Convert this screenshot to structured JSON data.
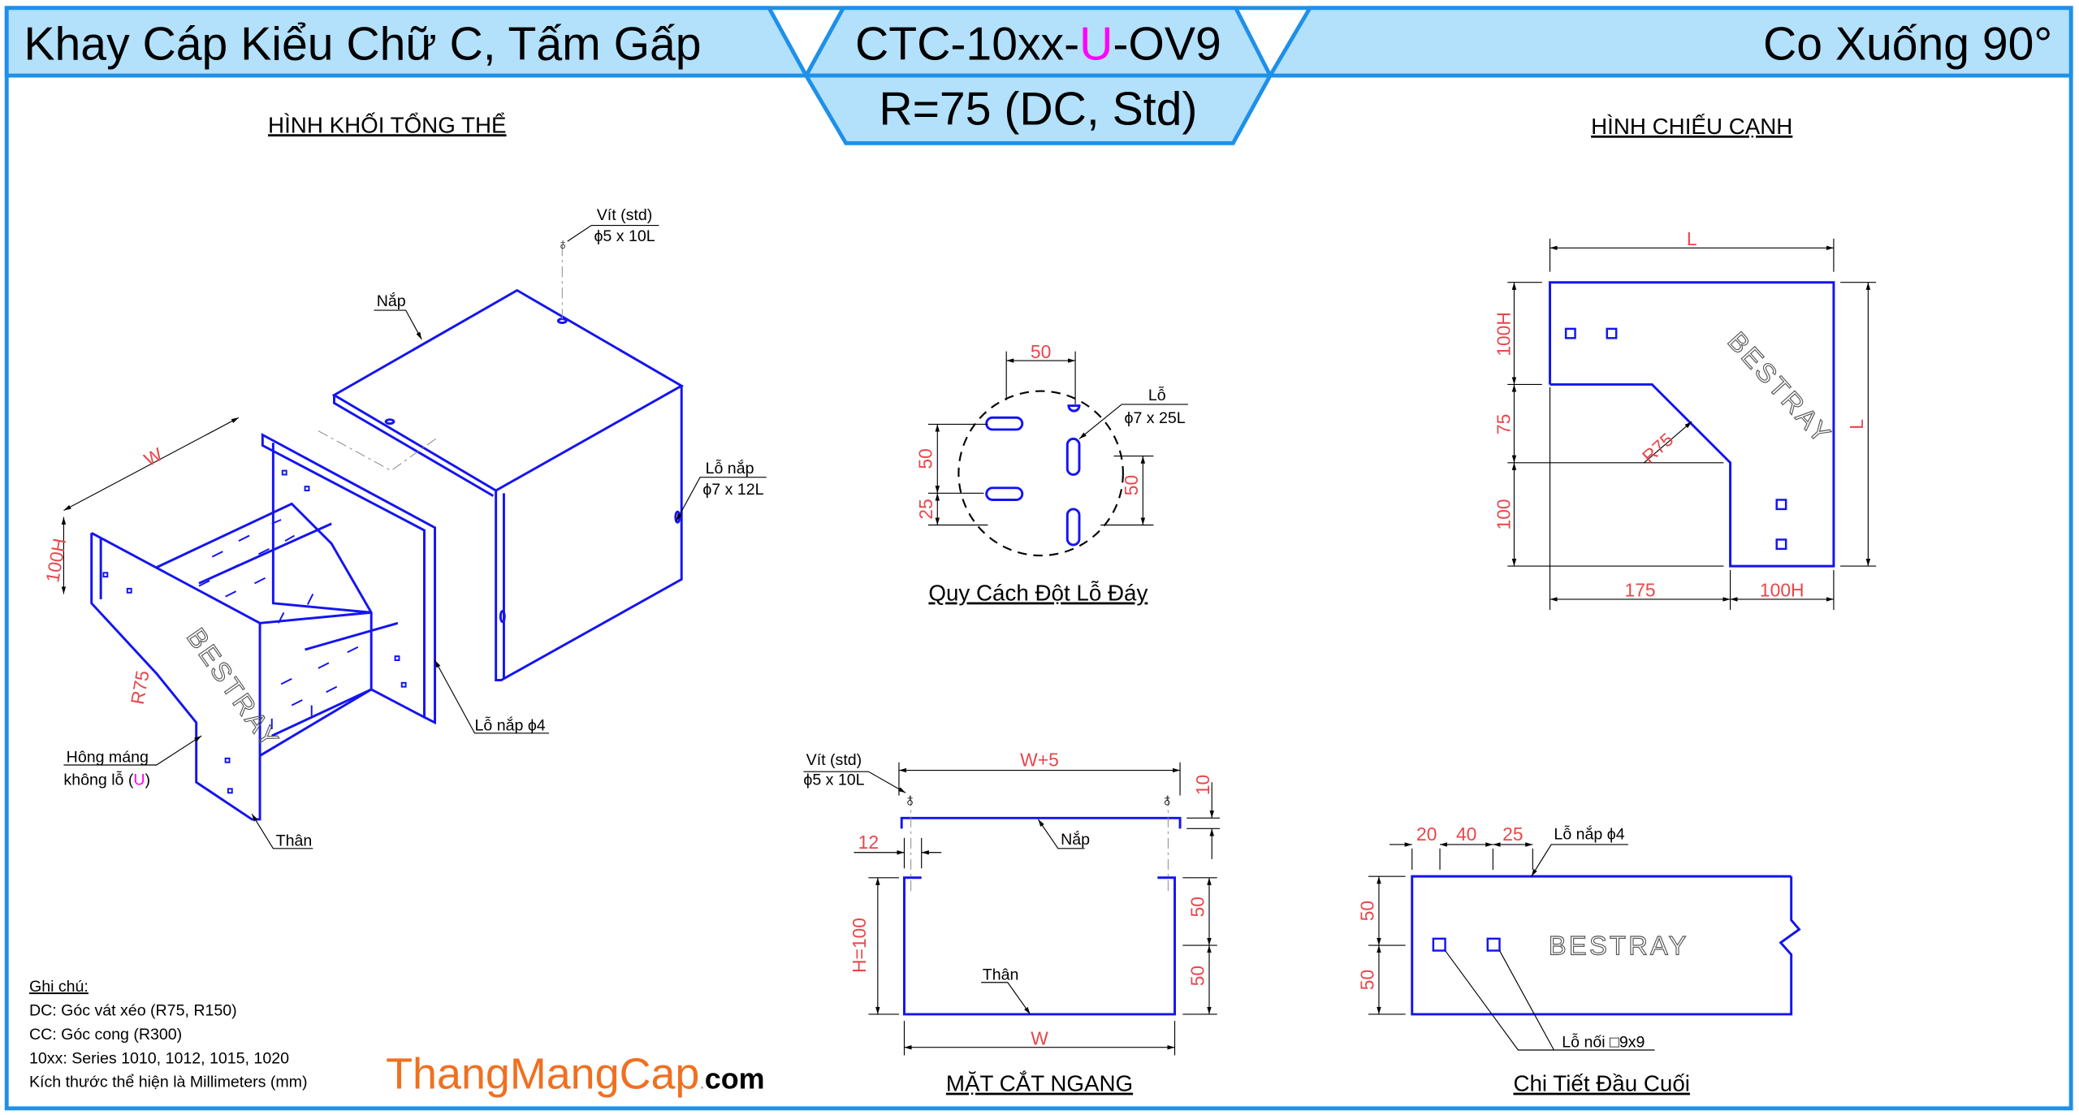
{
  "colors": {
    "frame": "#1e90e8",
    "header_fill": "#b3e0fb",
    "outline": "#1414f0",
    "dimension": "#e8464a",
    "highlight": "#ff00ff",
    "brand": "#f07020"
  },
  "header": {
    "left_title": "Khay Cáp Kiểu Chữ C, Tấm Gấp",
    "code_prefix": "CTC-10xx-",
    "code_variant": "U",
    "code_suffix": "-OV9",
    "subtitle": "R=75 (DC, Std)",
    "right_title": "Co Xuống 90°"
  },
  "iso_view": {
    "title": "HÌNH KHỐI TỔNG THỂ",
    "screw_label": "Vít (std)",
    "screw_size": "ϕ5 x 10L",
    "cover_label": "Nắp",
    "width_dim": "W",
    "height_dim": "100H",
    "cover_hole_label": "Lỗ nắp",
    "cover_hole_size": "ϕ7 x 12L",
    "radius_dim": "R75",
    "logo": "BESTRAY",
    "side_label_1": "Hông máng",
    "side_label_2_prefix": "không lỗ (",
    "side_label_2_variant": "U",
    "side_label_2_suffix": ")",
    "body_label": "Thân",
    "cover_hole_small": "Lỗ nắp ϕ4"
  },
  "hole_pattern": {
    "title": "Quy Cách Đột Lỗ Đáy",
    "top_dim": "50",
    "left_dim_upper": "50",
    "left_dim_lower": "25",
    "right_dim": "50",
    "hole_label": "Lỗ",
    "hole_size": "ϕ7 x 25L"
  },
  "side_view": {
    "title": "HÌNH CHIẾU CẠNH",
    "top_dim": "L",
    "right_dim": "L",
    "left_dim_top": "100H",
    "left_dim_mid": "75",
    "left_dim_bottom": "100",
    "radius_dim": "R75",
    "bottom_dim_left": "175",
    "bottom_dim_right": "100H",
    "logo": "BESTRAY"
  },
  "cross_section": {
    "title": "MẶT CẮT NGANG",
    "screw_label": "Vít (std)",
    "screw_size": "ϕ5 x 10L",
    "cover_width_dim": "W+5",
    "cover_flange_dim": "10",
    "offset_dim": "12",
    "cover_label": "Nắp",
    "height_dim": "H=100",
    "right_dim_upper": "50",
    "right_dim_lower": "50",
    "body_label": "Thân",
    "width_dim": "W"
  },
  "end_detail": {
    "title": "Chi Tiết Đầu Cuối",
    "dim_1": "20",
    "dim_2": "40",
    "dim_3": "25",
    "cover_hole_label": "Lỗ nắp ϕ4",
    "left_dim_upper": "50",
    "left_dim_lower": "50",
    "logo": "BESTRAY",
    "joint_hole_label": "Lỗ nối □9x9"
  },
  "notes": {
    "heading": "Ghi chú:",
    "lines": [
      "DC: Góc vát xéo (R75, R150)",
      "CC: Góc cong (R300)",
      "10xx: Series 1010, 1012, 1015, 1020",
      "Kích thước thể hiện là Millimeters (mm)"
    ]
  },
  "brand": {
    "name": "ThangMangCap",
    "dot": ".",
    "tld": "com"
  }
}
